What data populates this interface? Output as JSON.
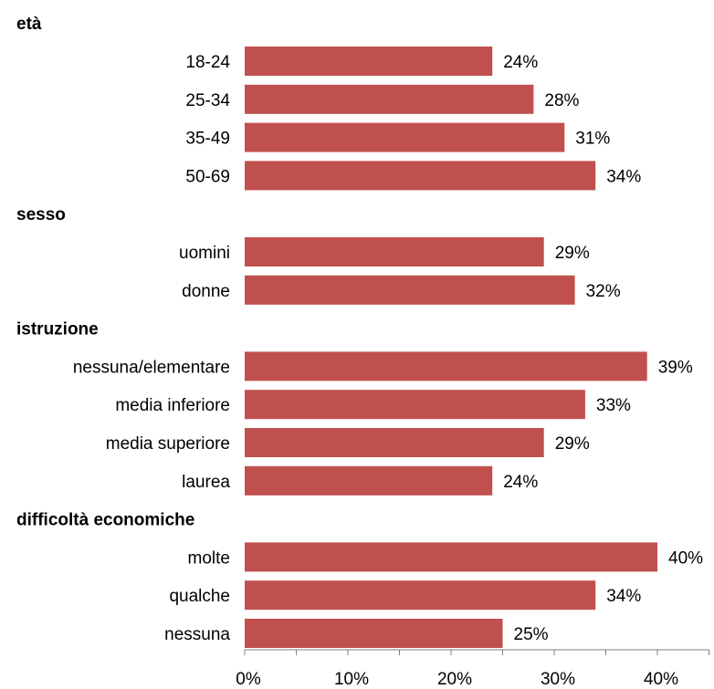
{
  "chart_data": {
    "type": "bar",
    "orientation": "horizontal",
    "title": "",
    "xlabel": "",
    "ylabel": "",
    "xlim": [
      0,
      45
    ],
    "x_ticks": [
      "0%",
      "10%",
      "20%",
      "30%",
      "40%"
    ],
    "grid": false,
    "bar_color": "#c0504d",
    "groups": [
      {
        "label": "età",
        "categories": [
          "18-24",
          "25-34",
          "35-49",
          "50-69"
        ],
        "values": [
          24,
          28,
          31,
          34
        ],
        "value_labels": [
          "24%",
          "28%",
          "31%",
          "34%"
        ]
      },
      {
        "label": "sesso",
        "categories": [
          "uomini",
          "donne"
        ],
        "values": [
          29,
          32
        ],
        "value_labels": [
          "29%",
          "32%"
        ]
      },
      {
        "label": "istruzione",
        "categories": [
          "nessuna/elementare",
          "media inferiore",
          "media superiore",
          "laurea"
        ],
        "values": [
          39,
          33,
          29,
          24
        ],
        "value_labels": [
          "39%",
          "33%",
          "29%",
          "24%"
        ]
      },
      {
        "label": "difficoltà economiche",
        "categories": [
          "molte",
          "qualche",
          "nessuna"
        ],
        "values": [
          40,
          34,
          25
        ],
        "value_labels": [
          "40%",
          "34%",
          "25%"
        ]
      }
    ]
  }
}
